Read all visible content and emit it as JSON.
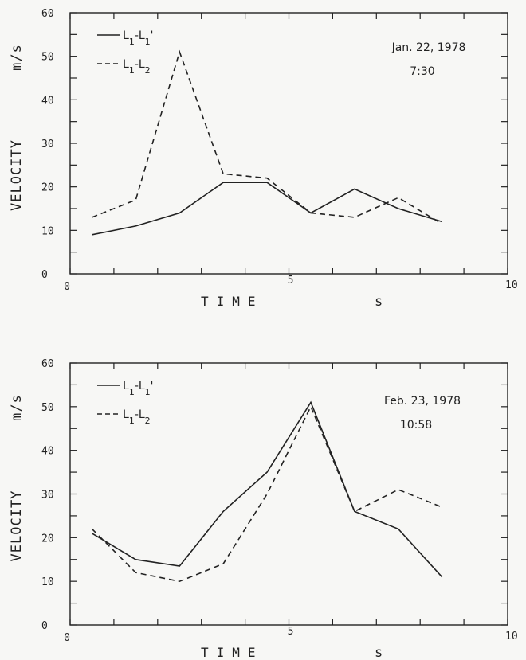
{
  "chart_data": [
    {
      "type": "line",
      "xlabel": "TIME",
      "xunit": "s",
      "ylabel": "VELOCITY",
      "yunit": "m/s",
      "xlim": [
        0,
        10
      ],
      "ylim": [
        0,
        60
      ],
      "xticklabels": [
        "0",
        "5",
        "10"
      ],
      "yticklabels": [
        "0",
        "10",
        "20",
        "30",
        "40",
        "50",
        "60"
      ],
      "legend": "top-left",
      "annotation": [
        "Jan. 22, 1978",
        "7:30"
      ],
      "series": [
        {
          "name": "L1-L1'",
          "style": "solid",
          "x": [
            0.5,
            1.5,
            2.5,
            3.5,
            4.5,
            5.5,
            6.5,
            7.5,
            8.5
          ],
          "y": [
            9,
            11,
            14,
            21,
            21,
            14,
            19.5,
            15,
            12
          ]
        },
        {
          "name": "L1-L2",
          "style": "dashed",
          "x": [
            0.5,
            1.5,
            2.5,
            3.5,
            4.5,
            5.5,
            6.5,
            7.5,
            8.5
          ],
          "y": [
            13,
            17,
            51,
            23,
            22,
            14,
            13,
            17.5,
            11.5
          ]
        }
      ]
    },
    {
      "type": "line",
      "xlabel": "TIME",
      "xunit": "s",
      "ylabel": "VELOCITY",
      "yunit": "m/s",
      "xlim": [
        0,
        10
      ],
      "ylim": [
        0,
        60
      ],
      "xticklabels": [
        "0",
        "5",
        "10"
      ],
      "yticklabels": [
        "0",
        "10",
        "20",
        "30",
        "40",
        "50",
        "60"
      ],
      "legend": "top-left",
      "annotation": [
        "Feb. 23, 1978",
        "10:58"
      ],
      "series": [
        {
          "name": "L1-L1'",
          "style": "solid",
          "x": [
            0.5,
            1.5,
            2.5,
            3.5,
            4.5,
            5.5,
            6.5,
            7.5,
            8.5
          ],
          "y": [
            21,
            15,
            13.5,
            26,
            35,
            51,
            26,
            22,
            11
          ]
        },
        {
          "name": "L1-L2",
          "style": "dashed",
          "x": [
            0.5,
            1.5,
            2.5,
            3.5,
            4.5,
            5.5,
            6.5,
            7.5,
            8.5
          ],
          "y": [
            22,
            12,
            10,
            14,
            30,
            50,
            26,
            31,
            27
          ]
        }
      ]
    }
  ]
}
